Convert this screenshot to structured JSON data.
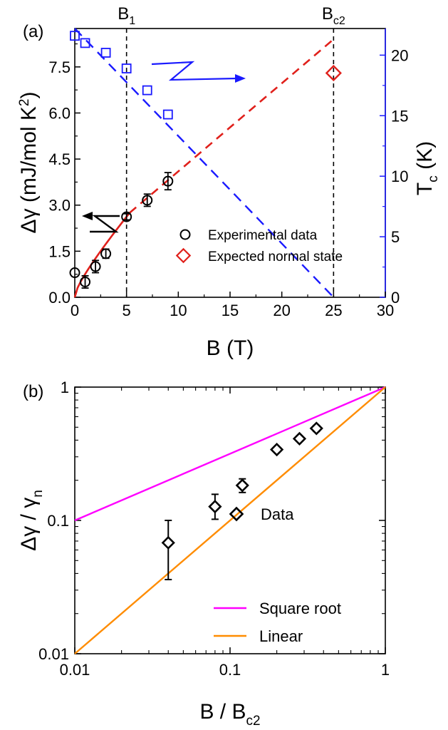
{
  "chart_data": [
    {
      "panel": "(a)",
      "type": "scatter",
      "xlabel": "B (T)",
      "ylabel": "Δγ (mJ/mol K²)",
      "y2label": "Tc (K)",
      "xlim": [
        0,
        30
      ],
      "ylim": [
        0,
        8.75
      ],
      "y2lim": [
        0,
        22.2
      ],
      "x_ticks": [
        "0",
        "5",
        "10",
        "15",
        "20",
        "25",
        "30"
      ],
      "y_ticks": [
        "0.0",
        "1.5",
        "3.0",
        "4.5",
        "6.0",
        "7.5"
      ],
      "y2_ticks": [
        "0",
        "5",
        "10",
        "15",
        "20"
      ],
      "vlines": [
        {
          "x": 5,
          "label": "B",
          "sub": "1"
        },
        {
          "x": 25,
          "label": "B",
          "sub": "c2"
        }
      ],
      "series": [
        {
          "name": "Experimental data",
          "marker": "circle",
          "color": "#000000",
          "x": [
            0,
            1,
            2,
            3,
            5,
            7,
            9
          ],
          "y": [
            0.8,
            0.5,
            1.0,
            1.42,
            2.62,
            3.16,
            3.78
          ],
          "err": [
            0,
            0.2,
            0.2,
            0.15,
            0.1,
            0.2,
            0.28
          ]
        },
        {
          "name": "Expected normal state",
          "marker": "diamond",
          "color": "#e0201b",
          "x": [
            25
          ],
          "y": [
            7.3
          ]
        },
        {
          "marker": "square",
          "axis": "y2",
          "color": "#1a1aff",
          "x": [
            0,
            1,
            3,
            5,
            7,
            9
          ],
          "y": [
            21.6,
            21.0,
            20.2,
            18.9,
            17.1,
            15.1
          ]
        }
      ],
      "fit_red_solid": {
        "x0": 0,
        "x1": 5.3
      },
      "fit_red_dashed": {
        "from": [
          5.3,
          2.75
        ],
        "to": [
          25,
          8.4
        ]
      },
      "fit_blue_dashed": {
        "from": [
          0,
          22.2
        ],
        "to": [
          25,
          0
        ]
      },
      "colors": {
        "red": "#e0201b",
        "blue": "#1a1aff",
        "black": "#000000"
      }
    },
    {
      "panel": "(b)",
      "type": "scatter",
      "scale": "log-log",
      "xlabel": "B / Bc2",
      "ylabel": "Δγ / γn",
      "xlim": [
        0.01,
        1
      ],
      "ylim": [
        0.01,
        1
      ],
      "x_ticks": [
        "0.01",
        "0.1",
        "1"
      ],
      "y_ticks": [
        "0.01",
        "0.1",
        "1"
      ],
      "series": [
        {
          "name": "Data",
          "marker": "diamond",
          "color": "#000000",
          "x": [
            0.04,
            0.08,
            0.12,
            0.2,
            0.28,
            0.36
          ],
          "y": [
            0.068,
            0.127,
            0.183,
            0.34,
            0.41,
            0.49
          ],
          "err_low": [
            0.036,
            0.102,
            0.162,
            0.325,
            0.395,
            0.465
          ],
          "err_high": [
            0.1,
            0.157,
            0.205,
            0.355,
            0.425,
            0.515
          ]
        },
        {
          "name": "Square root",
          "line": true,
          "color": "#ff00ff",
          "x": [
            0.01,
            1
          ],
          "y": [
            0.1,
            1
          ]
        },
        {
          "name": "Linear",
          "line": true,
          "color": "#ff8c00",
          "x": [
            0.01,
            1
          ],
          "y": [
            0.01,
            1
          ]
        }
      ]
    }
  ]
}
